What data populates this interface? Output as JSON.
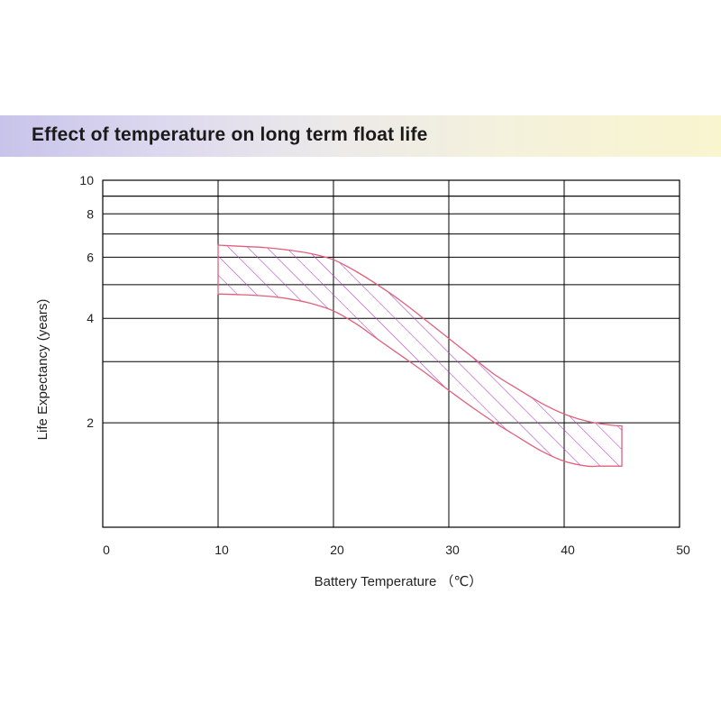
{
  "header": {
    "title": "Effect of temperature on long term float life"
  },
  "colors": {
    "band": "#e0607a",
    "hatch": "#b23cc4",
    "grid": "#000000",
    "banner_left": "#c8c3ea",
    "banner_right": "#f9f5cf"
  },
  "chart_data": {
    "type": "area",
    "title": "Effect of temperature on long term float life",
    "xlabel": "Battery Temperature （℃）",
    "ylabel": "Life Expectancy (years)",
    "xlim": [
      0,
      50
    ],
    "ylim": [
      1,
      10
    ],
    "yscale": "log",
    "grid": true,
    "x_ticks": [
      0,
      10,
      20,
      30,
      40,
      50
    ],
    "x_tick_labels": [
      "0",
      "10",
      "20",
      "30",
      "40",
      "50"
    ],
    "y_ticks": [
      2,
      4,
      6,
      8,
      10
    ],
    "y_tick_labels": [
      "2",
      "4",
      "6",
      "8",
      "10"
    ],
    "y_gridlines": [
      2,
      3,
      4,
      5,
      6,
      7,
      8,
      9,
      10
    ],
    "series": [
      {
        "role": "upper",
        "x": [
          10,
          12,
          14,
          16,
          18,
          20,
          22,
          24,
          26,
          28,
          30,
          32,
          34,
          36,
          38,
          40,
          42,
          44,
          45
        ],
        "values": [
          6.5,
          6.45,
          6.4,
          6.3,
          6.15,
          5.9,
          5.45,
          4.95,
          4.45,
          3.95,
          3.5,
          3.1,
          2.75,
          2.5,
          2.28,
          2.12,
          2.02,
          1.97,
          1.96
        ]
      },
      {
        "role": "lower",
        "x": [
          10,
          12,
          14,
          16,
          18,
          20,
          22,
          24,
          26,
          28,
          30,
          32,
          34,
          36,
          38,
          40,
          42,
          43,
          44,
          45
        ],
        "values": [
          4.7,
          4.68,
          4.64,
          4.56,
          4.42,
          4.2,
          3.85,
          3.45,
          3.1,
          2.78,
          2.48,
          2.22,
          2.0,
          1.82,
          1.66,
          1.55,
          1.5,
          1.5,
          1.5,
          1.5
        ]
      }
    ]
  }
}
